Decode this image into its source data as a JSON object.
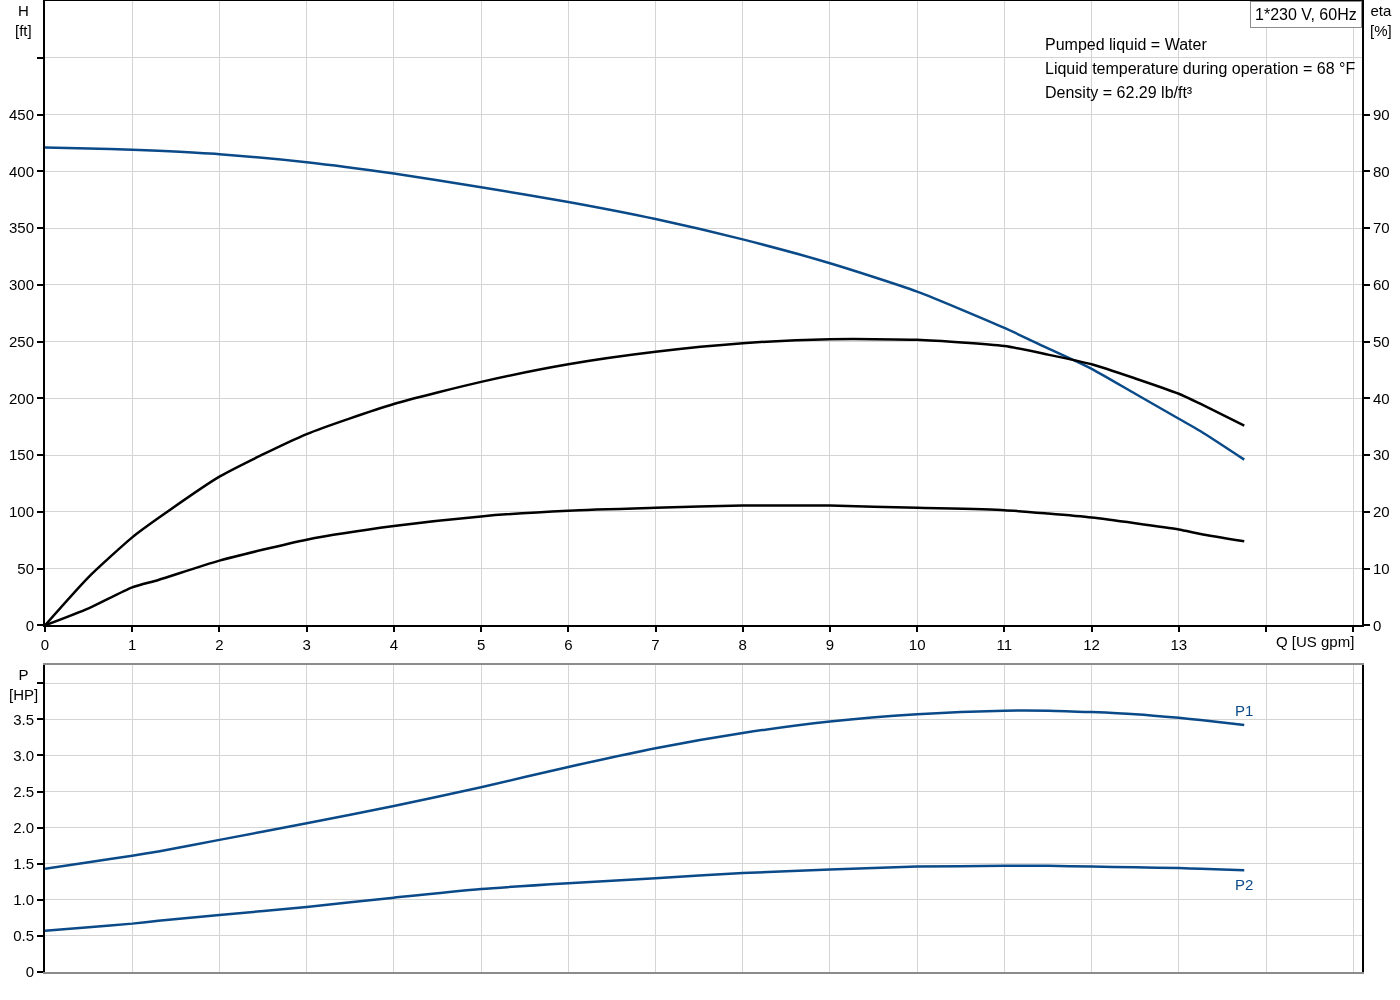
{
  "chart_data": [
    {
      "type": "line",
      "title": "1*230 V, 60Hz",
      "xlabel": "Q [US gpm]",
      "ylabel": "H\n[ft]",
      "y2label": "eta\n[%]",
      "annotations": [
        "Pumped liquid = Water",
        "Liquid temperature during operation = 68 °F",
        "Density = 62.29 lb/ft³"
      ],
      "x": [
        0,
        0.5,
        1,
        1.3,
        2,
        3,
        4,
        5,
        6,
        7,
        8,
        9,
        10,
        11,
        11.5,
        12,
        12.5,
        13,
        13.25,
        13.75
      ],
      "series": [
        {
          "color": "#0b4a88",
          "values": [
            421,
            420,
            419,
            418,
            415,
            408,
            398,
            386,
            373,
            358,
            340,
            319,
            294,
            262,
            244,
            226,
            204,
            182,
            171,
            146
          ]
        },
        {
          "color": "#000000",
          "axis": "y2",
          "values": [
            0,
            8.5,
            15.5,
            18.9,
            26.2,
            33.7,
            39.0,
            42.9,
            46.0,
            48.2,
            49.7,
            50.4,
            50.3,
            49.2,
            47.7,
            46.0,
            43.5,
            40.8,
            39.0,
            35.2
          ]
        },
        {
          "color": "#000000",
          "axis": "y2",
          "values": [
            0,
            3.0,
            6.7,
            8.0,
            11.4,
            15.1,
            17.5,
            19.2,
            20.2,
            20.7,
            21.1,
            21.1,
            20.7,
            20.3,
            19.7,
            19.0,
            18.0,
            16.9,
            16.1,
            14.8
          ]
        }
      ],
      "xlim": [
        0,
        15.1
      ],
      "xticks": [
        0,
        1,
        2,
        3,
        4,
        5,
        6,
        7,
        8,
        9,
        10,
        11,
        12,
        13,
        {
          "value": 14,
          "label": null
        },
        {
          "value": 15,
          "label": null
        }
      ],
      "ylim": [
        0,
        550
      ],
      "yticks": [
        0,
        50,
        100,
        150,
        200,
        250,
        300,
        350,
        400,
        450,
        {
          "value": 500,
          "label": null
        }
      ],
      "y2lim": [
        0,
        110
      ],
      "y2ticks": [
        0,
        10,
        20,
        30,
        40,
        50,
        60,
        70,
        80,
        90
      ],
      "grid": true
    },
    {
      "type": "line",
      "ylabel": "P\n[HP]",
      "x": [
        0,
        0.5,
        1,
        1.3,
        2,
        3,
        4,
        5,
        6,
        7,
        8,
        9,
        10,
        11,
        11.5,
        12,
        12.5,
        13,
        13.25,
        13.75
      ],
      "series": [
        {
          "name": "P1",
          "color": "#0b4a88",
          "values": [
            1.43,
            1.52,
            1.61,
            1.67,
            1.83,
            2.06,
            2.3,
            2.56,
            2.84,
            3.1,
            3.31,
            3.47,
            3.57,
            3.62,
            3.62,
            3.6,
            3.57,
            3.52,
            3.49,
            3.42
          ]
        },
        {
          "name": "P2",
          "color": "#0b4a88",
          "values": [
            0.57,
            0.62,
            0.67,
            0.71,
            0.79,
            0.9,
            1.03,
            1.15,
            1.23,
            1.3,
            1.37,
            1.42,
            1.46,
            1.47,
            1.47,
            1.46,
            1.45,
            1.44,
            1.43,
            1.41
          ]
        }
      ],
      "xlim": [
        0,
        15.1
      ],
      "xticks": [
        0,
        1,
        2,
        3,
        4,
        5,
        6,
        7,
        8,
        9,
        10,
        11,
        12,
        13,
        14,
        15
      ],
      "ylim": [
        0,
        4.25
      ],
      "yticks": [
        0,
        0.5,
        {
          "value": 1,
          "label": "1.0"
        },
        1.5,
        {
          "value": 2,
          "label": "2.0"
        },
        2.5,
        {
          "value": 3,
          "label": "3.0"
        },
        3.5,
        {
          "value": 4,
          "label": null
        }
      ],
      "grid": true,
      "tick_labels": "y"
    }
  ]
}
